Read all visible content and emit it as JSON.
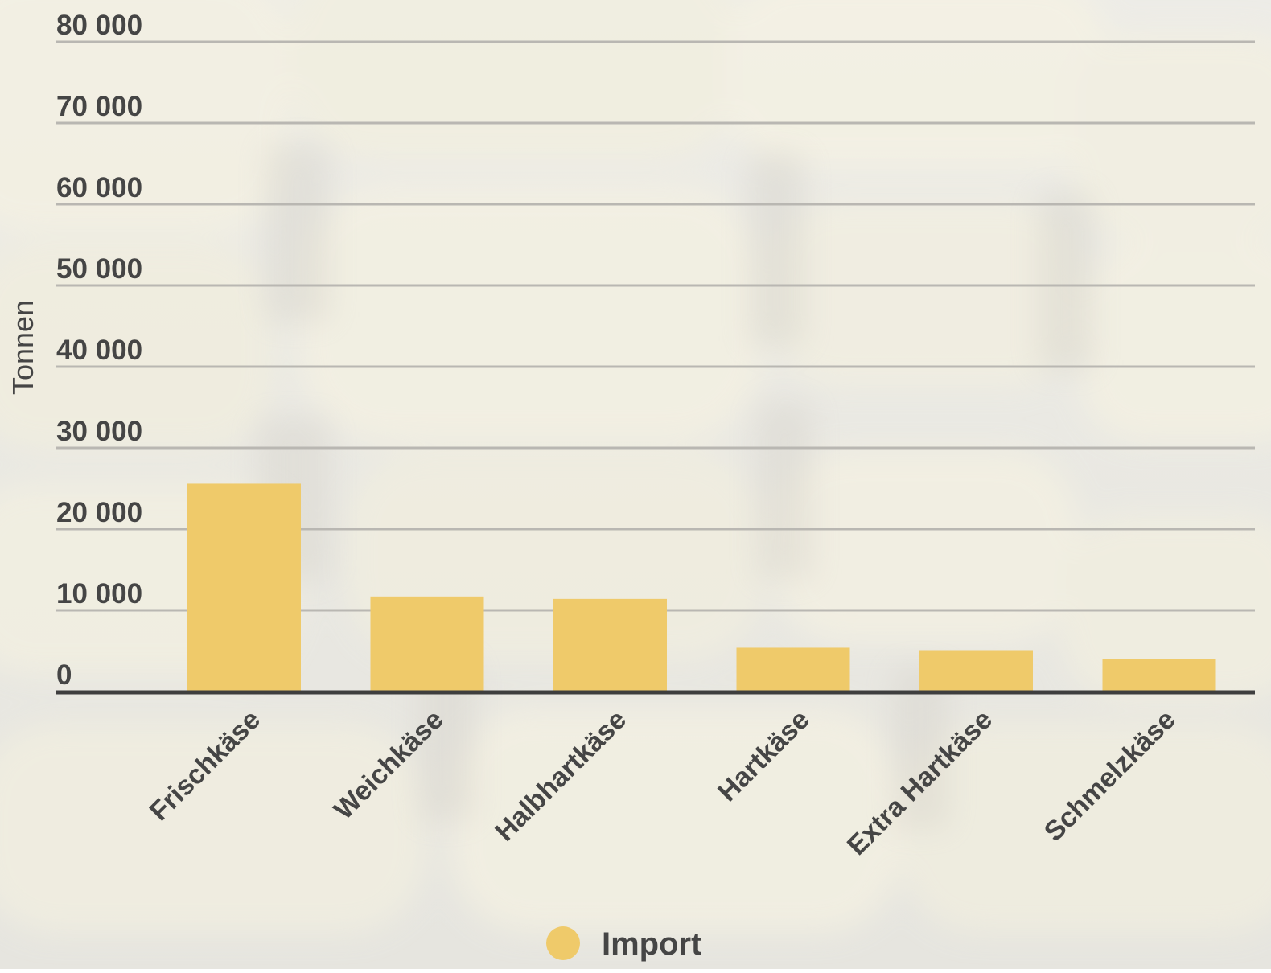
{
  "chart_data": {
    "type": "bar",
    "categories": [
      "Frischkäse",
      "Weichkäse",
      "Halbhartkäse",
      "Hartkäse",
      "Extra Hartkäse",
      "Schmelzkäse"
    ],
    "series": [
      {
        "name": "Import",
        "values": [
          25600,
          11700,
          11400,
          5400,
          5100,
          4000
        ]
      }
    ],
    "ylabel": "Tonnen",
    "ylim": [
      0,
      80000
    ],
    "yticks": [
      0,
      10000,
      20000,
      30000,
      40000,
      50000,
      60000,
      70000,
      80000
    ],
    "ytick_labels": [
      "0",
      "10 000",
      "20 000",
      "30 000",
      "40 000",
      "50 000",
      "60 000",
      "70 000",
      "80 000"
    ],
    "grid": true,
    "legend_position": "bottom",
    "background": "photo of stacked cheese wheels",
    "colors": {
      "bar": "#EFCA6A",
      "text": "#454545",
      "grid": "#B9B7B2",
      "baseline": "#3E3E3E"
    }
  }
}
